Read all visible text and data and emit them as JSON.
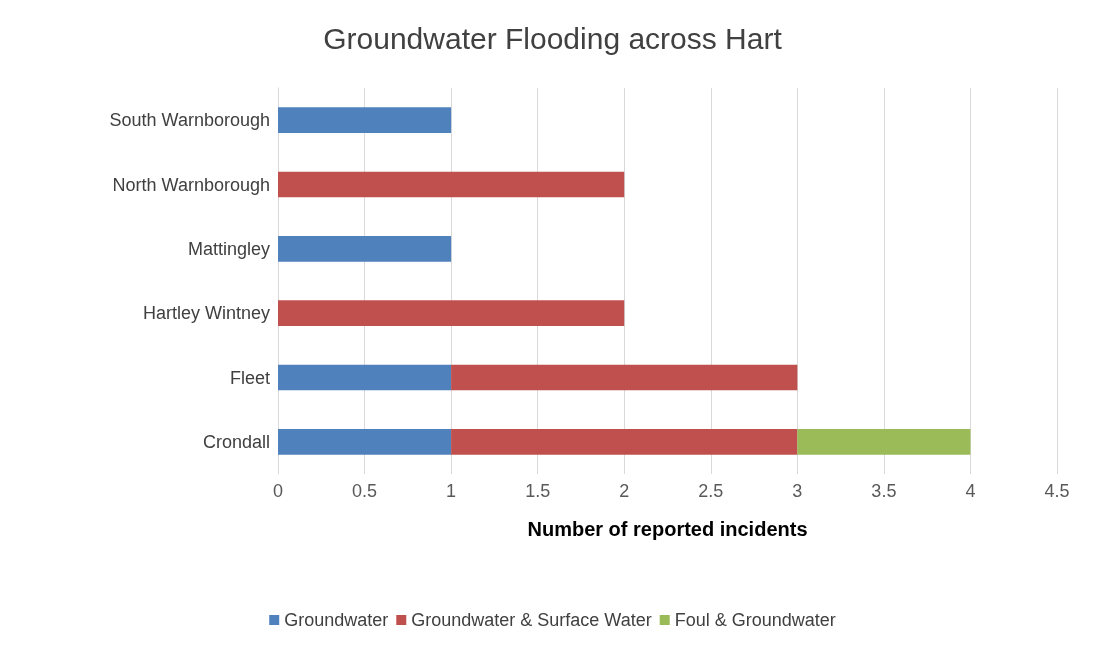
{
  "chart_data": {
    "type": "bar",
    "orientation": "horizontal",
    "stacked": true,
    "title": "Groundwater Flooding across Hart",
    "xlabel": "Number of reported incidents",
    "categories": [
      "South Warnborough",
      "North Warnborough",
      "Mattingley",
      "Hartley Wintney",
      "Fleet",
      "Crondall"
    ],
    "series": [
      {
        "name": "Groundwater",
        "color": "#4f81bd",
        "values": [
          1,
          null,
          1,
          null,
          1,
          1
        ]
      },
      {
        "name": "Groundwater & Surface Water",
        "color": "#c0504d",
        "values": [
          null,
          2,
          null,
          2,
          2,
          2
        ]
      },
      {
        "name": "Foul & Groundwater",
        "color": "#9bbb59",
        "values": [
          null,
          null,
          null,
          null,
          null,
          1
        ]
      }
    ],
    "xlim": [
      0,
      4.5
    ],
    "xticks": [
      0,
      0.5,
      1,
      1.5,
      2,
      2.5,
      3,
      3.5,
      4,
      4.5
    ],
    "grid": "x",
    "legend": "bottom"
  }
}
